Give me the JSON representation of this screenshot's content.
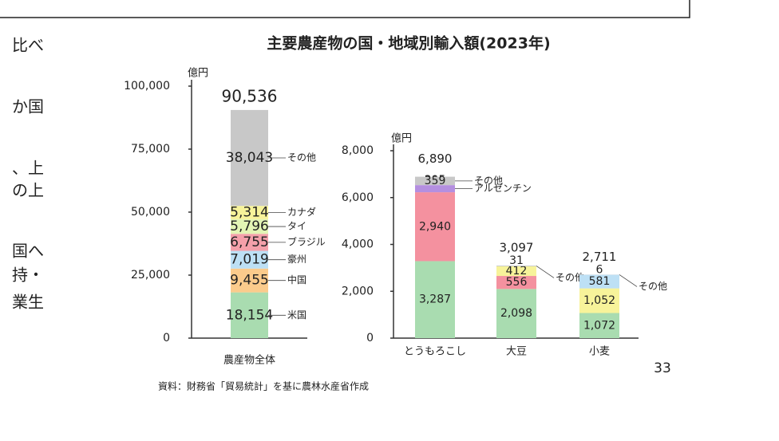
{
  "slide": {
    "title": "主要農産物の国・地域別輸入額(2023年)",
    "left_fragments": [
      "比べ",
      "か国",
      "、上",
      "の上",
      "国へ",
      "持・",
      "業生"
    ],
    "source": "資料：財務省「貿易統計」を基に農林水産省作成",
    "page_number": "33"
  },
  "chart_data": [
    {
      "type": "stacked-bar",
      "unit": "億円",
      "categories": [
        "農産物全体"
      ],
      "ylim": [
        0,
        100000
      ],
      "yticks": [
        0,
        {
          "value": 25000,
          "label": "25,000"
        },
        {
          "value": 50000,
          "label": "50,000"
        },
        {
          "value": 75000,
          "label": "75,000"
        },
        {
          "value": 100000,
          "label": "100,000"
        }
      ],
      "totals": [
        90536
      ],
      "total_labels": [
        "90,536"
      ],
      "series": [
        {
          "name": "米国",
          "color": "#a9dcb0",
          "values": [
            18154
          ],
          "value_labels": [
            "18,154"
          ]
        },
        {
          "name": "中国",
          "color": "#fbcb8c",
          "values": [
            9455
          ],
          "value_labels": [
            "9,455"
          ]
        },
        {
          "name": "豪州",
          "color": "#bde0f5",
          "values": [
            7019
          ],
          "value_labels": [
            "7,019"
          ]
        },
        {
          "name": "ブラジル",
          "color": "#f4a0aa",
          "values": [
            6755
          ],
          "value_labels": [
            "6,755"
          ]
        },
        {
          "name": "タイ",
          "color": "#e3f5b5",
          "values": [
            5796
          ],
          "value_labels": [
            "5,796"
          ]
        },
        {
          "name": "カナダ",
          "color": "#f7f39a",
          "values": [
            5314
          ],
          "value_labels": [
            "5,314"
          ]
        },
        {
          "name": "その他",
          "color": "#c8c8c8",
          "values": [
            38043
          ],
          "value_labels": [
            "38,043"
          ]
        }
      ]
    },
    {
      "type": "stacked-bar",
      "unit": "億円",
      "categories": [
        "とうもろこし",
        "大豆",
        "小麦"
      ],
      "ylim": [
        0,
        8000
      ],
      "yticks": [
        0,
        {
          "value": 2000,
          "label": "2,000"
        },
        {
          "value": 4000,
          "label": "4,000"
        },
        {
          "value": 6000,
          "label": "6,000"
        },
        {
          "value": 8000,
          "label": "8,000"
        }
      ],
      "totals": [
        6890,
        3097,
        2711
      ],
      "total_labels": [
        "6,890",
        "3,097",
        "2,711"
      ],
      "series": [
        {
          "color": "#a9dcb0",
          "values": [
            3287,
            2098,
            1072
          ],
          "value_labels": [
            "3,287",
            "2,098",
            "1,072"
          ]
        },
        {
          "color": "#f4919f",
          "values": [
            2940,
            556,
            null
          ],
          "value_labels": [
            "2,940",
            "556",
            null
          ]
        },
        {
          "color": "#f7f39a",
          "values": [
            null,
            412,
            1052
          ],
          "value_labels": [
            null,
            "412",
            "1,052"
          ]
        },
        {
          "color": "#bde0f5",
          "values": [
            null,
            null,
            581
          ]
        },
        {
          "name": "アルゼンチン",
          "color": "#b48fe0",
          "values": [
            305,
            null,
            null
          ]
        },
        {
          "name": "その他",
          "color": "#c8c8c8",
          "values": [
            359,
            31,
            6
          ]
        }
      ]
    }
  ]
}
